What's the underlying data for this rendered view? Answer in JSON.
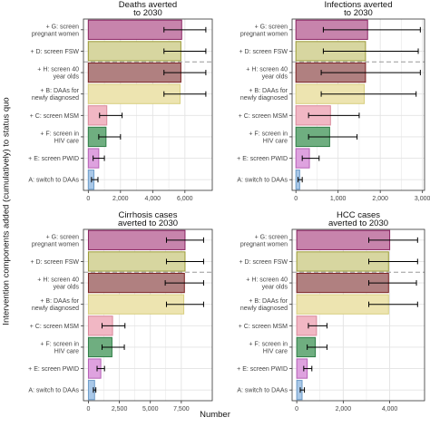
{
  "figure": {
    "ylabel": "Intervention components added (cumulatively) to status quo",
    "xlabel": "Number"
  },
  "chart_data": [
    {
      "type": "bar",
      "orientation": "horizontal",
      "title": "Deaths averted\nto 2030",
      "categories": [
        "+ G: screen pregnant women",
        "+ D: screen FSW",
        "+ H: screen 40 year olds",
        "+ B: DAAs for newly diagnosed",
        "+ C: screen MSM",
        "+ F: screen in HIV care",
        "+ E: screen PWID",
        "A: switch to DAAs"
      ],
      "values": [
        5800,
        5750,
        5750,
        5700,
        1150,
        1100,
        650,
        350
      ],
      "error_low": [
        4700,
        4700,
        4700,
        4700,
        700,
        650,
        300,
        200
      ],
      "error_high": [
        7300,
        7300,
        7300,
        7300,
        2100,
        2000,
        1000,
        600
      ],
      "xlim": [
        -300,
        7700
      ],
      "ticks": [
        0,
        2000,
        4000,
        6000
      ],
      "tick_labels": [
        "0",
        "2,000",
        "4,000",
        "6,000"
      ],
      "grid": true
    },
    {
      "type": "bar",
      "orientation": "horizontal",
      "title": "Infections averted\nto 2030",
      "categories": [
        "+ G: screen pregnant women",
        "+ D: screen FSW",
        "+ H: screen 40 year olds",
        "+ B: DAAs for newly diagnosed",
        "+ C: screen MSM",
        "+ F: screen in HIV care",
        "+ E: screen PWID",
        "A: switch to DAAs"
      ],
      "values": [
        1700,
        1650,
        1650,
        1620,
        820,
        800,
        320,
        90
      ],
      "error_low": [
        650,
        650,
        600,
        600,
        300,
        300,
        150,
        50
      ],
      "error_high": [
        2950,
        2900,
        2950,
        2850,
        1500,
        1450,
        550,
        150
      ],
      "xlim": [
        -90,
        3050
      ],
      "ticks": [
        0,
        1000,
        2000,
        3000
      ],
      "tick_labels": [
        "0",
        "1,000",
        "2,000",
        "3,000"
      ],
      "grid": true
    },
    {
      "type": "bar",
      "orientation": "horizontal",
      "title": "Cirrhosis cases\naverted to 2030",
      "categories": [
        "+ G: screen pregnant women",
        "+ D: screen FSW",
        "+ H: screen 40 year olds",
        "+ B: DAAs for newly diagnosed",
        "+ C: screen MSM",
        "+ F: screen in HIV care",
        "+ E: screen PWID",
        "A: switch to DAAs"
      ],
      "values": [
        7800,
        7800,
        7750,
        7700,
        1950,
        1900,
        1000,
        500
      ],
      "error_low": [
        6300,
        6300,
        6200,
        6300,
        1100,
        1100,
        700,
        400
      ],
      "error_high": [
        9300,
        9300,
        9300,
        9300,
        2950,
        2900,
        1300,
        600
      ],
      "xlim": [
        -400,
        10000
      ],
      "ticks": [
        0,
        2500,
        5000,
        7500
      ],
      "tick_labels": [
        "0",
        "2,500",
        "5,000",
        "7,500"
      ],
      "grid": true
    },
    {
      "type": "bar",
      "orientation": "horizontal",
      "title": "HCC cases\naverted to 2030",
      "categories": [
        "+ G: screen pregnant women",
        "+ D: screen FSW",
        "+ H: screen 40 year olds",
        "+ B: DAAs for newly diagnosed",
        "+ C: screen MSM",
        "+ F: screen in HIV care",
        "+ E: screen PWID",
        "A: switch to DAAs"
      ],
      "values": [
        4000,
        3950,
        3950,
        3950,
        850,
        800,
        450,
        230
      ],
      "error_low": [
        3100,
        3100,
        3100,
        3100,
        500,
        450,
        300,
        150
      ],
      "error_high": [
        5200,
        5200,
        5150,
        5200,
        1300,
        1300,
        650,
        330
      ],
      "xlim": [
        -200,
        5500
      ],
      "ticks": [
        0,
        2000,
        4000
      ],
      "tick_labels": [
        "0",
        "2,000",
        "4,000"
      ],
      "grid": true
    }
  ],
  "colors": {
    "panel_background": "#ffffff",
    "grid": "#e3e3e3",
    "panel_border": "#333333",
    "reference_line": "#999999",
    "error_bar": "#000000",
    "bar_fills": [
      "#c784ac",
      "#d7d6a0",
      "#b08080",
      "#ede4b0",
      "#f1b7c4",
      "#6fae80",
      "#dea2df",
      "#a9c8e8"
    ],
    "bar_strokes": [
      "#8a2462",
      "#9b9a36",
      "#7a1f1f",
      "#d8cf80",
      "#d9899a",
      "#2e7d45",
      "#b560b6",
      "#6e9cc8"
    ]
  }
}
